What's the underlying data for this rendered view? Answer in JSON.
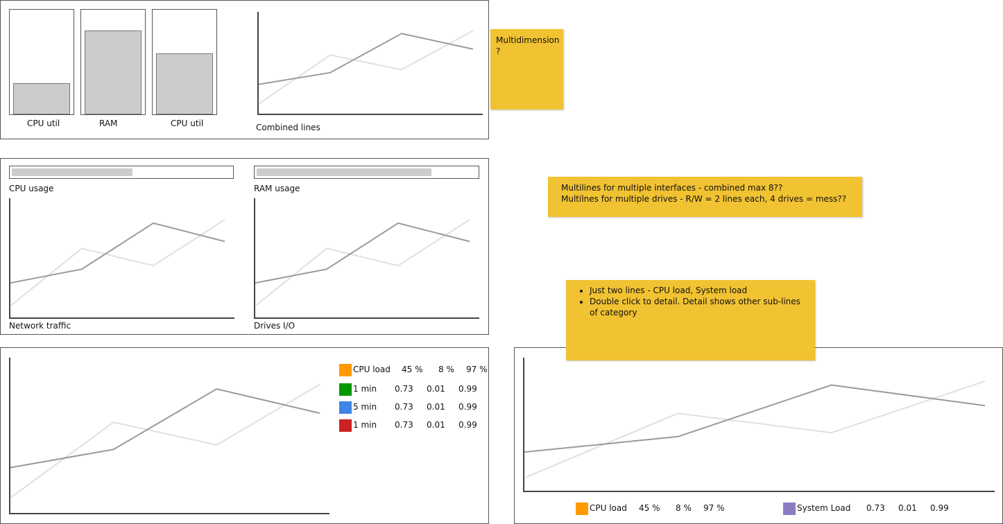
{
  "panel1": {
    "bars": [
      {
        "label": "CPU util",
        "level": 0.3
      },
      {
        "label": "RAM",
        "level": 0.8
      },
      {
        "label": "CPU util",
        "level": 0.58
      }
    ],
    "combined_label": "Combined lines"
  },
  "panel2": {
    "cpu_usage_label": "CPU usage",
    "cpu_usage_level": 0.56,
    "ram_usage_label": "RAM usage",
    "ram_usage_level": 0.8,
    "network_label": "Network traffic",
    "drives_label": "Drives I/O"
  },
  "panel3": {
    "legend": [
      {
        "label": "CPU load",
        "v1": "45 %",
        "v2": "8 %",
        "v3": "97 %",
        "color": "#ff9900"
      },
      {
        "label": "1 min",
        "v1": "0.73",
        "v2": "0.01",
        "v3": "0.99",
        "color": "#009900"
      },
      {
        "label": "5 min",
        "v1": "0.73",
        "v2": "0.01",
        "v3": "0.99",
        "color": "#3d85e6"
      },
      {
        "label": "1 min",
        "v1": "0.73",
        "v2": "0.01",
        "v3": "0.99",
        "color": "#cc2222"
      }
    ]
  },
  "panel4": {
    "legend_cpu": {
      "label": "CPU load",
      "v1": "45 %",
      "v2": "8 %",
      "v3": "97 %",
      "color": "#ff9900"
    },
    "legend_sys": {
      "label": "System Load",
      "v1": "0.73",
      "v2": "0.01",
      "v3": "0.99",
      "color": "#8e7cc3"
    }
  },
  "notes": {
    "note1": [
      "Multidimension",
      "?"
    ],
    "note2": [
      "Multilines for multiple interfaces -  combined max 8??",
      "Multilnes  for multiple drives - R/W = 2 lines each, 4 drives =  mess??"
    ],
    "note3": [
      "Just two lines - CPU load, System load",
      "Double click to detail. Detail shows other sub-lines of category"
    ]
  },
  "chart_data": {
    "type": "line",
    "x": [
      0,
      1,
      2,
      3
    ],
    "series": [
      {
        "values": [
          10,
          60,
          45,
          85
        ],
        "color": "#e0e0e0"
      },
      {
        "values": [
          30,
          42,
          82,
          66
        ],
        "color": "#9a9a9a"
      }
    ],
    "ylim": [
      0,
      100
    ]
  }
}
